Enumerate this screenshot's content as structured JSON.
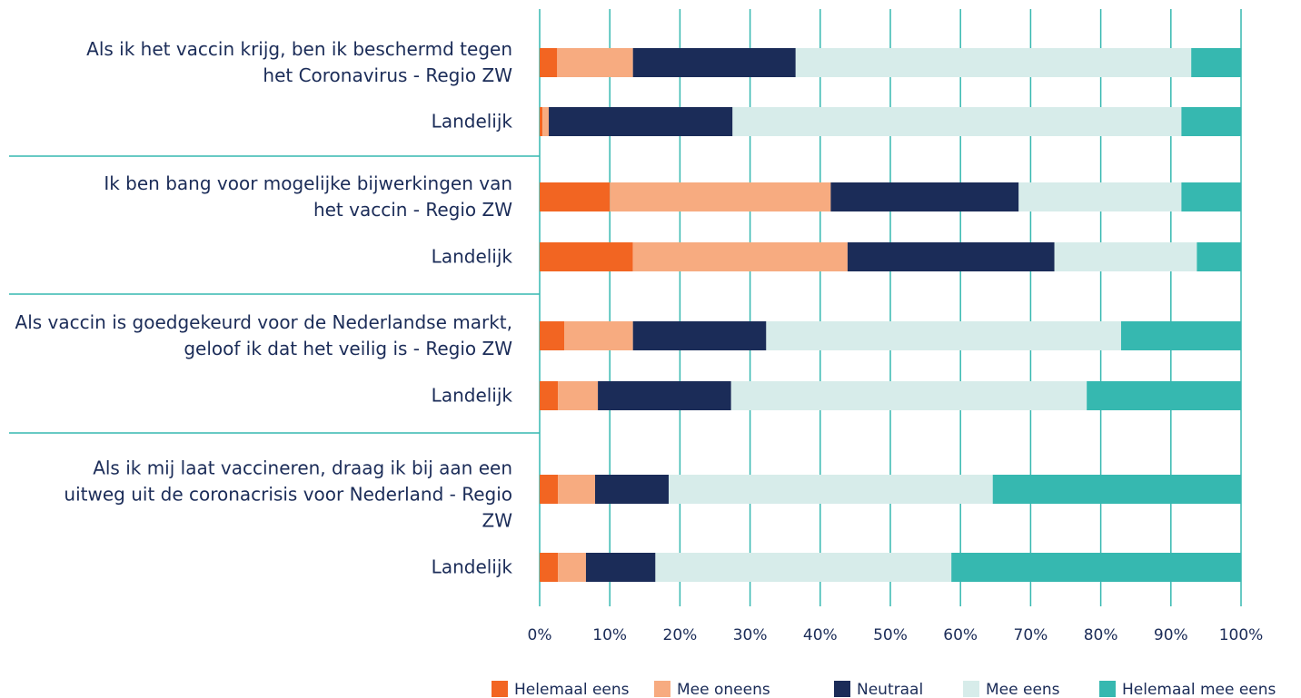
{
  "chart_data": {
    "type": "stacked-bar-horizontal",
    "categories": [
      "Als ik het vaccin krijg, ben ik beschermd tegen het Coronavirus - Regio ZW",
      "Landelijk",
      "Ik ben bang voor mogelijke bijwerkingen van het vaccin - Regio ZW",
      "Landelijk",
      "Als vaccin is goedgekeurd voor de Nederlandse markt, geloof ik dat het veilig is - Regio ZW",
      "Landelijk",
      "Als ik mij laat vaccineren, draag ik bij aan een uitweg uit de coronacrisis voor Nederland - Regio ZW",
      "Landelijk"
    ],
    "series": [
      {
        "name": "Helemaal eens",
        "color": "#f26522",
        "values": [
          2.5,
          0.4,
          10.0,
          13.3,
          3.5,
          2.6,
          2.6,
          2.6
        ]
      },
      {
        "name": "Mee oneens",
        "color": "#f7ab80",
        "values": [
          10.8,
          0.9,
          31.5,
          30.6,
          9.8,
          5.7,
          5.3,
          4.0
        ]
      },
      {
        "name": "Neutraal",
        "color": "#1b2c58",
        "values": [
          23.2,
          26.2,
          26.8,
          29.5,
          19.0,
          19.0,
          10.5,
          9.9
        ]
      },
      {
        "name": "Mee eens",
        "color": "#d7ecea",
        "values": [
          56.4,
          64.0,
          23.2,
          20.3,
          50.6,
          50.7,
          46.2,
          42.2
        ]
      },
      {
        "name": "Helemaal mee eens",
        "color": "#36b8b0",
        "values": [
          7.1,
          8.5,
          8.5,
          6.3,
          17.1,
          22.0,
          35.4,
          41.3
        ]
      }
    ],
    "xlim": [
      0,
      100
    ],
    "xticks": [
      {
        "value": 0,
        "label": "0%"
      },
      {
        "value": 10,
        "label": "10%"
      },
      {
        "value": 20,
        "label": "20%"
      },
      {
        "value": 30,
        "label": "30%"
      },
      {
        "value": 40,
        "label": "40%"
      },
      {
        "value": 50,
        "label": "50%"
      },
      {
        "value": 60,
        "label": "60%"
      },
      {
        "value": 70,
        "label": "70%"
      },
      {
        "value": 80,
        "label": "80%"
      },
      {
        "value": 90,
        "label": "90%"
      },
      {
        "value": 100,
        "label": "100%"
      }
    ],
    "grid": true,
    "legend": "bottom"
  }
}
